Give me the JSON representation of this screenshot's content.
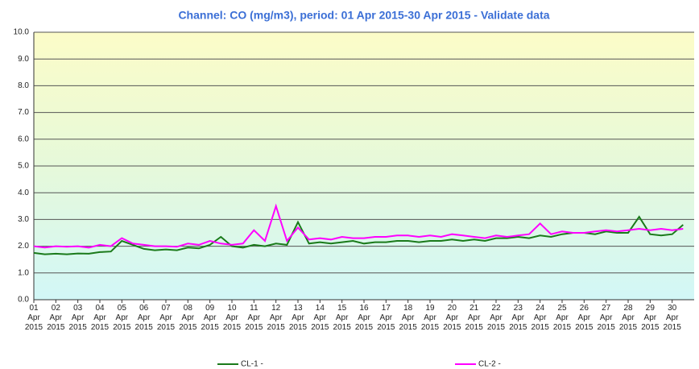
{
  "chart_data": {
    "type": "line",
    "title": "Channel: CO (mg/m3), period: 01 Apr 2015-30 Apr 2015 - Validate data",
    "x": [
      1,
      1.5,
      2,
      2.5,
      3,
      3.5,
      4,
      4.5,
      5,
      5.5,
      6,
      6.5,
      7,
      7.5,
      8,
      8.5,
      9,
      9.5,
      10,
      10.5,
      11,
      11.5,
      12,
      12.5,
      13,
      13.5,
      14,
      14.5,
      15,
      15.5,
      16,
      16.5,
      17,
      17.5,
      18,
      18.5,
      19,
      19.5,
      20,
      20.5,
      21,
      21.5,
      22,
      22.5,
      23,
      23.5,
      24,
      24.5,
      25,
      25.5,
      26,
      26.5,
      27,
      27.5,
      28,
      28.5,
      29,
      29.5,
      30,
      30.5
    ],
    "series": [
      {
        "name": "CL-1 -",
        "color": "#1a7a1a",
        "values": [
          1.75,
          1.7,
          1.72,
          1.7,
          1.73,
          1.72,
          1.78,
          1.8,
          2.2,
          2.05,
          1.9,
          1.85,
          1.88,
          1.85,
          1.95,
          1.92,
          2.05,
          2.35,
          2.0,
          1.95,
          2.05,
          2.0,
          2.1,
          2.05,
          2.9,
          2.1,
          2.15,
          2.1,
          2.15,
          2.2,
          2.1,
          2.15,
          2.15,
          2.2,
          2.2,
          2.15,
          2.2,
          2.2,
          2.25,
          2.2,
          2.25,
          2.2,
          2.3,
          2.3,
          2.35,
          2.3,
          2.4,
          2.35,
          2.45,
          2.5,
          2.5,
          2.45,
          2.55,
          2.5,
          2.5,
          3.1,
          2.45,
          2.4,
          2.45,
          2.8
        ]
      },
      {
        "name": "CL-2 -",
        "color": "#ff00ff",
        "values": [
          2.0,
          1.95,
          2.0,
          1.98,
          2.0,
          1.95,
          2.05,
          2.0,
          2.3,
          2.1,
          2.05,
          2.0,
          2.0,
          1.98,
          2.1,
          2.05,
          2.2,
          2.1,
          2.05,
          2.1,
          2.6,
          2.2,
          3.5,
          2.2,
          2.7,
          2.25,
          2.3,
          2.25,
          2.35,
          2.3,
          2.3,
          2.35,
          2.35,
          2.4,
          2.4,
          2.35,
          2.4,
          2.35,
          2.45,
          2.4,
          2.35,
          2.3,
          2.4,
          2.35,
          2.4,
          2.45,
          2.85,
          2.45,
          2.55,
          2.5,
          2.5,
          2.55,
          2.6,
          2.55,
          2.6,
          2.65,
          2.6,
          2.65,
          2.6,
          2.65
        ]
      }
    ],
    "xlim": [
      1,
      31
    ],
    "xticks": [
      {
        "value": 1,
        "label": "01 Apr 2015"
      },
      {
        "value": 2,
        "label": "02 Apr 2015"
      },
      {
        "value": 3,
        "label": "03 Apr 2015"
      },
      {
        "value": 4,
        "label": "04 Apr 2015"
      },
      {
        "value": 5,
        "label": "05 Apr 2015"
      },
      {
        "value": 6,
        "label": "06 Apr 2015"
      },
      {
        "value": 7,
        "label": "07 Apr 2015"
      },
      {
        "value": 8,
        "label": "08 Apr 2015"
      },
      {
        "value": 9,
        "label": "09 Apr 2015"
      },
      {
        "value": 10,
        "label": "10 Apr 2015"
      },
      {
        "value": 11,
        "label": "11 Apr 2015"
      },
      {
        "value": 12,
        "label": "12 Apr 2015"
      },
      {
        "value": 13,
        "label": "13 Apr 2015"
      },
      {
        "value": 14,
        "label": "14 Apr 2015"
      },
      {
        "value": 15,
        "label": "15 Apr 2015"
      },
      {
        "value": 16,
        "label": "16 Apr 2015"
      },
      {
        "value": 17,
        "label": "17 Apr 2015"
      },
      {
        "value": 18,
        "label": "18 Apr 2015"
      },
      {
        "value": 19,
        "label": "19 Apr 2015"
      },
      {
        "value": 20,
        "label": "20 Apr 2015"
      },
      {
        "value": 21,
        "label": "21 Apr 2015"
      },
      {
        "value": 22,
        "label": "22 Apr 2015"
      },
      {
        "value": 23,
        "label": "23 Apr 2015"
      },
      {
        "value": 24,
        "label": "24 Apr 2015"
      },
      {
        "value": 25,
        "label": "25 Apr 2015"
      },
      {
        "value": 26,
        "label": "26 Apr 2015"
      },
      {
        "value": 27,
        "label": "27 Apr 2015"
      },
      {
        "value": 28,
        "label": "28 Apr 2015"
      },
      {
        "value": 29,
        "label": "29 Apr 2015"
      },
      {
        "value": 30,
        "label": "30 Apr 2015"
      }
    ],
    "ylim": [
      0,
      10
    ],
    "yticks": [
      {
        "value": 0,
        "label": "0.0"
      },
      {
        "value": 1,
        "label": "1.0"
      },
      {
        "value": 2,
        "label": "2.0"
      },
      {
        "value": 3,
        "label": "3.0"
      },
      {
        "value": 4,
        "label": "4.0"
      },
      {
        "value": 5,
        "label": "5.0"
      },
      {
        "value": 6,
        "label": "6.0"
      },
      {
        "value": 7,
        "label": "7.0"
      },
      {
        "value": 8,
        "label": "8.0"
      },
      {
        "value": 9,
        "label": "9.0"
      },
      {
        "value": 10,
        "label": "10.0"
      }
    ],
    "grid": true,
    "legend": "bottom"
  }
}
